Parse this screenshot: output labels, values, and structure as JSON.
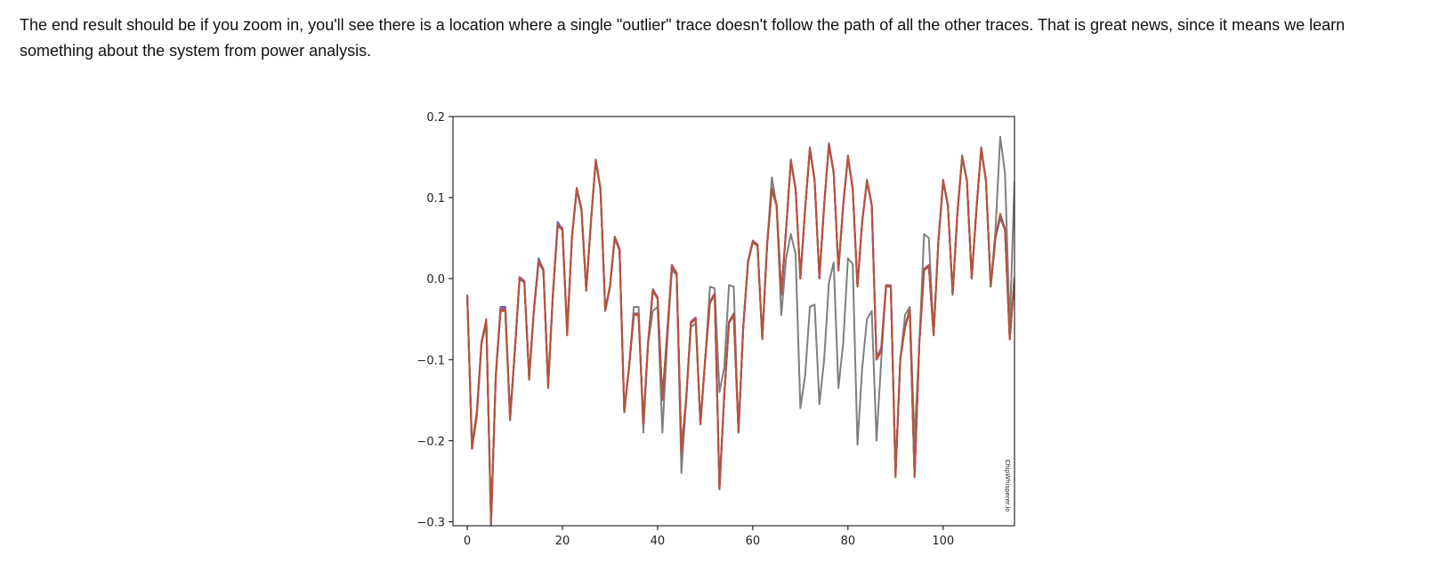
{
  "text": {
    "paragraph": "The end result should be if you zoom in, you'll see there is a location where a single \"outlier\" trace doesn't follow the path of all the other traces. That is great news, since it means we learn something about the system from power analysis."
  },
  "chart_data": {
    "type": "line",
    "title": "",
    "xlabel": "",
    "ylabel": "",
    "xlim": [
      -3,
      115
    ],
    "ylim": [
      -0.305,
      0.2
    ],
    "x_ticks": [
      0,
      20,
      40,
      60,
      80,
      100
    ],
    "y_ticks": [
      -0.3,
      -0.2,
      -0.1,
      0.0,
      0.1,
      0.2
    ],
    "x_tick_labels": [
      "0",
      "20",
      "40",
      "60",
      "80",
      "100"
    ],
    "y_tick_labels": [
      "−0.3",
      "−0.2",
      "−0.1",
      "0.0",
      "0.1",
      "0.2"
    ],
    "grid": false,
    "legend": "none",
    "watermark": "ChipWhisperer.io",
    "series": [
      {
        "color": "#3a6ea5",
        "values": [
          -0.02,
          -0.21,
          -0.17,
          -0.08,
          -0.055,
          -0.305,
          -0.12,
          -0.035,
          -0.035,
          -0.17,
          -0.09,
          0.0,
          -0.005,
          -0.12,
          -0.04,
          0.025,
          0.01,
          -0.13,
          -0.02,
          0.07,
          0.06,
          -0.065,
          0.05,
          0.11,
          0.085,
          -0.015,
          0.07,
          0.145,
          0.11,
          -0.04,
          -0.01,
          0.05,
          0.035,
          -0.165,
          -0.11,
          -0.045,
          -0.045,
          -0.18,
          -0.08,
          -0.015,
          -0.025,
          -0.15,
          -0.07,
          0.015,
          0.005,
          -0.21,
          -0.15,
          -0.055,
          -0.05,
          -0.18,
          -0.1,
          -0.03,
          -0.02,
          -0.26,
          -0.145,
          -0.055,
          -0.045,
          -0.19,
          -0.06,
          0.02,
          0.045,
          0.04,
          -0.075,
          0.04,
          0.11,
          0.09,
          -0.02,
          0.06,
          0.145,
          0.11,
          0.0,
          0.085,
          0.16,
          0.12,
          0.0,
          0.09,
          0.165,
          0.13,
          0.01,
          0.09,
          0.15,
          0.11,
          -0.01,
          0.07,
          0.12,
          0.09,
          -0.1,
          -0.085,
          -0.01,
          -0.01,
          -0.24,
          -0.1,
          -0.06,
          -0.04,
          -0.245,
          -0.08,
          0.01,
          0.015,
          -0.07,
          0.045,
          0.12,
          0.09,
          -0.02,
          0.08,
          0.15,
          0.12,
          0.0,
          0.085,
          0.16,
          0.12,
          -0.01,
          0.05,
          0.075,
          0.06,
          -0.075,
          0.0
        ]
      },
      {
        "color": "#c4413b",
        "values": [
          -0.02,
          -0.21,
          -0.17,
          -0.08,
          -0.05,
          -0.3,
          -0.12,
          -0.04,
          -0.04,
          -0.175,
          -0.09,
          0.0,
          -0.005,
          -0.125,
          -0.04,
          0.02,
          0.01,
          -0.135,
          -0.02,
          0.065,
          0.06,
          -0.07,
          0.05,
          0.11,
          0.085,
          -0.015,
          0.07,
          0.145,
          0.11,
          -0.04,
          -0.01,
          0.05,
          0.035,
          -0.165,
          -0.11,
          -0.045,
          -0.045,
          -0.18,
          -0.08,
          -0.015,
          -0.025,
          -0.15,
          -0.07,
          0.015,
          0.005,
          -0.215,
          -0.15,
          -0.055,
          -0.05,
          -0.18,
          -0.1,
          -0.03,
          -0.02,
          -0.26,
          -0.145,
          -0.055,
          -0.045,
          -0.19,
          -0.06,
          0.02,
          0.045,
          0.04,
          -0.075,
          0.04,
          0.11,
          0.09,
          -0.02,
          0.06,
          0.145,
          0.11,
          0.0,
          0.085,
          0.16,
          0.12,
          0.0,
          0.09,
          0.165,
          0.13,
          0.01,
          0.09,
          0.15,
          0.11,
          -0.01,
          0.07,
          0.12,
          0.09,
          -0.1,
          -0.09,
          -0.01,
          -0.01,
          -0.245,
          -0.1,
          -0.06,
          -0.04,
          -0.245,
          -0.08,
          0.01,
          0.015,
          -0.07,
          0.045,
          0.12,
          0.09,
          -0.02,
          0.08,
          0.15,
          0.12,
          0.0,
          0.085,
          0.16,
          0.12,
          -0.01,
          0.05,
          0.08,
          0.06,
          -0.075,
          0.0
        ]
      },
      {
        "color": "#a04fa0",
        "values": [
          -0.022,
          -0.205,
          -0.165,
          -0.078,
          -0.052,
          -0.298,
          -0.118,
          -0.036,
          -0.036,
          -0.17,
          -0.088,
          0.002,
          -0.003,
          -0.12,
          -0.038,
          0.023,
          0.012,
          -0.13,
          -0.018,
          0.068,
          0.062,
          -0.064,
          0.052,
          0.112,
          0.087,
          -0.013,
          0.072,
          0.147,
          0.112,
          -0.038,
          -0.008,
          0.052,
          0.037,
          -0.162,
          -0.108,
          -0.043,
          -0.043,
          -0.178,
          -0.078,
          -0.013,
          -0.023,
          -0.148,
          -0.068,
          0.017,
          0.007,
          -0.21,
          -0.148,
          -0.053,
          -0.048,
          -0.178,
          -0.098,
          -0.028,
          -0.018,
          -0.258,
          -0.143,
          -0.053,
          -0.043,
          -0.188,
          -0.058,
          0.022,
          0.047,
          0.042,
          -0.073,
          0.042,
          0.112,
          0.092,
          -0.018,
          0.062,
          0.147,
          0.112,
          0.002,
          0.087,
          0.162,
          0.122,
          0.002,
          0.092,
          0.167,
          0.132,
          0.012,
          0.092,
          0.152,
          0.112,
          -0.008,
          0.072,
          0.122,
          0.092,
          -0.098,
          -0.085,
          -0.008,
          -0.008,
          -0.24,
          -0.098,
          -0.058,
          -0.038,
          -0.243,
          -0.078,
          0.012,
          0.017,
          -0.068,
          0.047,
          0.122,
          0.092,
          -0.018,
          0.082,
          0.152,
          0.122,
          0.002,
          0.087,
          0.162,
          0.122,
          -0.008,
          0.052,
          0.078,
          0.062,
          -0.073,
          0.002
        ]
      },
      {
        "color": "#7f7f7f",
        "values": [
          -0.02,
          -0.205,
          -0.165,
          -0.078,
          -0.052,
          -0.3,
          -0.12,
          -0.038,
          -0.038,
          -0.172,
          -0.09,
          0.0,
          -0.005,
          -0.122,
          -0.04,
          0.02,
          0.01,
          -0.13,
          -0.02,
          0.065,
          0.06,
          -0.066,
          0.05,
          0.11,
          0.085,
          -0.015,
          0.07,
          0.145,
          0.11,
          -0.04,
          -0.01,
          0.05,
          0.035,
          -0.165,
          -0.11,
          -0.035,
          -0.035,
          -0.19,
          -0.08,
          -0.04,
          -0.035,
          -0.19,
          -0.08,
          0.01,
          0.005,
          -0.24,
          -0.15,
          -0.06,
          -0.055,
          -0.18,
          -0.1,
          -0.01,
          -0.012,
          -0.14,
          -0.11,
          -0.008,
          -0.01,
          -0.19,
          -0.06,
          0.02,
          0.045,
          0.04,
          -0.075,
          0.04,
          0.125,
          0.09,
          -0.045,
          0.025,
          0.055,
          0.03,
          -0.16,
          -0.12,
          -0.035,
          -0.032,
          -0.155,
          -0.1,
          -0.005,
          0.02,
          -0.135,
          -0.08,
          0.025,
          0.018,
          -0.205,
          -0.11,
          -0.05,
          -0.04,
          -0.2,
          -0.1,
          -0.01,
          -0.01,
          -0.24,
          -0.1,
          -0.045,
          -0.035,
          -0.2,
          -0.08,
          0.055,
          0.05,
          -0.07,
          0.045,
          0.12,
          0.09,
          -0.02,
          0.08,
          0.15,
          0.12,
          0.0,
          0.085,
          0.16,
          0.12,
          -0.01,
          0.06,
          0.175,
          0.13,
          -0.06,
          0.12
        ]
      },
      {
        "color": "#b5533c",
        "values": [
          -0.021,
          -0.209,
          -0.169,
          -0.079,
          -0.051,
          -0.302,
          -0.121,
          -0.039,
          -0.039,
          -0.174,
          -0.089,
          0.001,
          -0.004,
          -0.124,
          -0.039,
          0.021,
          0.011,
          -0.134,
          -0.019,
          0.066,
          0.061,
          -0.069,
          0.051,
          0.111,
          0.086,
          -0.014,
          0.071,
          0.146,
          0.111,
          -0.039,
          -0.009,
          0.051,
          0.036,
          -0.164,
          -0.109,
          -0.044,
          -0.044,
          -0.179,
          -0.079,
          -0.014,
          -0.024,
          -0.149,
          -0.069,
          0.016,
          0.006,
          -0.214,
          -0.149,
          -0.054,
          -0.049,
          -0.179,
          -0.099,
          -0.029,
          -0.019,
          -0.259,
          -0.144,
          -0.054,
          -0.044,
          -0.189,
          -0.059,
          0.021,
          0.046,
          0.041,
          -0.074,
          0.041,
          0.111,
          0.091,
          -0.019,
          0.061,
          0.146,
          0.111,
          0.001,
          0.086,
          0.161,
          0.121,
          0.001,
          0.091,
          0.166,
          0.131,
          0.011,
          0.091,
          0.151,
          0.111,
          -0.009,
          0.071,
          0.121,
          0.091,
          -0.099,
          -0.089,
          -0.009,
          -0.009,
          -0.244,
          -0.099,
          -0.059,
          -0.039,
          -0.244,
          -0.079,
          0.011,
          0.016,
          -0.069,
          0.046,
          0.121,
          0.091,
          -0.019,
          0.081,
          0.151,
          0.121,
          0.001,
          0.086,
          0.161,
          0.121,
          -0.009,
          0.051,
          0.079,
          0.061,
          -0.074,
          0.001
        ]
      }
    ]
  }
}
